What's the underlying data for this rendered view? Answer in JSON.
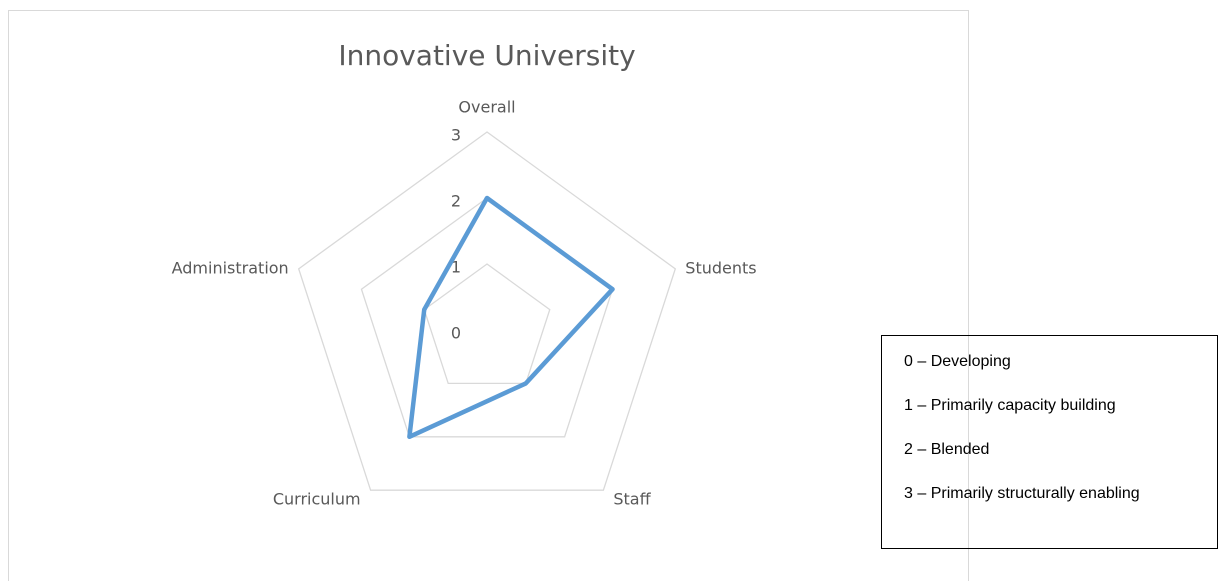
{
  "chart_data": {
    "type": "radar",
    "title": "Innovative University",
    "categories": [
      "Overall",
      "Students",
      "Staff",
      "Curriculum",
      "Administration"
    ],
    "series": [
      {
        "name": "Innovative University",
        "color": "#5b9bd5",
        "values": [
          2,
          2,
          1,
          2,
          1
        ]
      }
    ],
    "rlim": [
      0,
      3
    ],
    "rticks": [
      0,
      1,
      2,
      3
    ],
    "grid": true
  },
  "legend_box": [
    "0 – Developing",
    "1 – Primarily capacity building",
    "2 – Blended",
    "3 – Primarily structurally enabling"
  ]
}
